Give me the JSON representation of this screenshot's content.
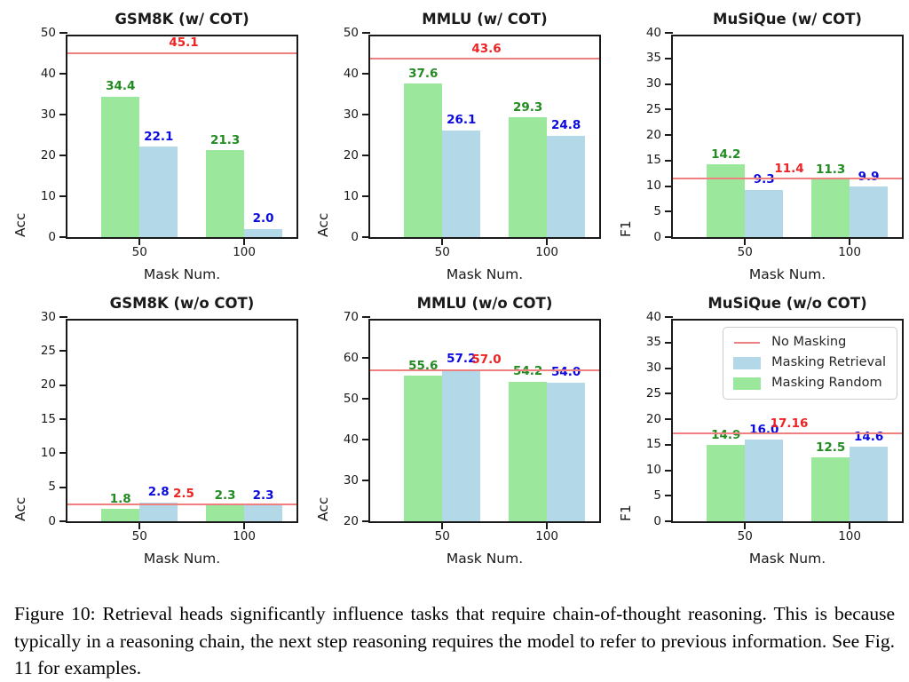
{
  "figure": {
    "caption": "Figure 10: Retrieval heads significantly influence tasks that require chain-of-thought reasoning. This is because typically in a reasoning chain, the next step reasoning requires the model to refer to previous information. See Fig. 11 for examples.",
    "colors": {
      "bar_green": "#9BE79B",
      "bar_blue": "#B3D8E8",
      "baseline_red": "#F08080",
      "label_green": "#228B22",
      "label_blue": "#0B0BE0",
      "label_red": "#EE2222",
      "axis": "#1A1A1A"
    },
    "legend": {
      "entries": [
        {
          "label": "No Masking",
          "swatch": "line",
          "color_key": "baseline_red"
        },
        {
          "label": "Masking Retrieval",
          "swatch": "patch",
          "color_key": "bar_blue"
        },
        {
          "label": "Masking Random",
          "swatch": "patch",
          "color_key": "bar_green"
        }
      ]
    }
  },
  "chart_data": [
    {
      "type": "bar",
      "title": "GSM8K (w/ COT)",
      "ylabel": "Acc",
      "xlabel": "Mask Num.",
      "ylim": [
        0,
        50
      ],
      "yticks": [
        0,
        10,
        20,
        30,
        40,
        50
      ],
      "categories": [
        "50",
        "100"
      ],
      "series": [
        {
          "name": "Masking Random",
          "color_key": "bar_green",
          "label_color_key": "label_green",
          "values": [
            34.4,
            21.3
          ],
          "labels": [
            "34.4",
            "21.3"
          ]
        },
        {
          "name": "Masking Retrieval",
          "color_key": "bar_blue",
          "label_color_key": "label_blue",
          "values": [
            22.1,
            2.0
          ],
          "labels": [
            "22.1",
            "2.0"
          ]
        }
      ],
      "baseline": {
        "name": "No Masking",
        "value": 45.1,
        "label": "45.1"
      },
      "show_legend": false
    },
    {
      "type": "bar",
      "title": "MMLU (w/ COT)",
      "ylabel": "Acc",
      "xlabel": "Mask Num.",
      "ylim": [
        0,
        50
      ],
      "yticks": [
        0,
        10,
        20,
        30,
        40,
        50
      ],
      "categories": [
        "50",
        "100"
      ],
      "series": [
        {
          "name": "Masking Random",
          "color_key": "bar_green",
          "label_color_key": "label_green",
          "values": [
            37.6,
            29.3
          ],
          "labels": [
            "37.6",
            "29.3"
          ]
        },
        {
          "name": "Masking Retrieval",
          "color_key": "bar_blue",
          "label_color_key": "label_blue",
          "values": [
            26.1,
            24.8
          ],
          "labels": [
            "26.1",
            "24.8"
          ]
        }
      ],
      "baseline": {
        "name": "No Masking",
        "value": 43.6,
        "label": "43.6"
      },
      "show_legend": false
    },
    {
      "type": "bar",
      "title": "MuSiQue (w/ COT)",
      "ylabel": "F1",
      "xlabel": "Mask Num.",
      "ylim": [
        0,
        40
      ],
      "yticks": [
        0,
        5,
        10,
        15,
        20,
        25,
        30,
        35,
        40
      ],
      "categories": [
        "50",
        "100"
      ],
      "series": [
        {
          "name": "Masking Random",
          "color_key": "bar_green",
          "label_color_key": "label_green",
          "values": [
            14.2,
            11.3
          ],
          "labels": [
            "14.2",
            "11.3"
          ]
        },
        {
          "name": "Masking Retrieval",
          "color_key": "bar_blue",
          "label_color_key": "label_blue",
          "values": [
            9.3,
            9.9
          ],
          "labels": [
            "9.3",
            "9.9"
          ]
        }
      ],
      "baseline": {
        "name": "No Masking",
        "value": 11.4,
        "label": "11.4"
      },
      "show_legend": false
    },
    {
      "type": "bar",
      "title": "GSM8K (w/o COT)",
      "ylabel": "Acc",
      "xlabel": "Mask Num.",
      "ylim": [
        0,
        30
      ],
      "yticks": [
        0,
        5,
        10,
        15,
        20,
        25,
        30
      ],
      "categories": [
        "50",
        "100"
      ],
      "series": [
        {
          "name": "Masking Random",
          "color_key": "bar_green",
          "label_color_key": "label_green",
          "values": [
            1.8,
            2.3
          ],
          "labels": [
            "1.8",
            "2.3"
          ]
        },
        {
          "name": "Masking Retrieval",
          "color_key": "bar_blue",
          "label_color_key": "label_blue",
          "values": [
            2.8,
            2.3
          ],
          "labels": [
            "2.8",
            "2.3"
          ]
        }
      ],
      "baseline": {
        "name": "No Masking",
        "value": 2.5,
        "label": "2.5"
      },
      "show_legend": false
    },
    {
      "type": "bar",
      "title": "MMLU (w/o COT)",
      "ylabel": "Acc",
      "xlabel": "Mask Num.",
      "ylim": [
        20,
        70
      ],
      "yticks": [
        20,
        30,
        40,
        50,
        60,
        70
      ],
      "categories": [
        "50",
        "100"
      ],
      "series": [
        {
          "name": "Masking Random",
          "color_key": "bar_green",
          "label_color_key": "label_green",
          "values": [
            55.6,
            54.2
          ],
          "labels": [
            "55.6",
            "54.2"
          ]
        },
        {
          "name": "Masking Retrieval",
          "color_key": "bar_blue",
          "label_color_key": "label_blue",
          "values": [
            57.2,
            54.0
          ],
          "labels": [
            "57.2",
            "54.0"
          ]
        }
      ],
      "baseline": {
        "name": "No Masking",
        "value": 57.0,
        "label": "57.0"
      },
      "show_legend": false
    },
    {
      "type": "bar",
      "title": "MuSiQue (w/o COT)",
      "ylabel": "F1",
      "xlabel": "Mask Num.",
      "ylim": [
        0,
        40
      ],
      "yticks": [
        0,
        5,
        10,
        15,
        20,
        25,
        30,
        35,
        40
      ],
      "categories": [
        "50",
        "100"
      ],
      "series": [
        {
          "name": "Masking Random",
          "color_key": "bar_green",
          "label_color_key": "label_green",
          "values": [
            14.9,
            12.5
          ],
          "labels": [
            "14.9",
            "12.5"
          ]
        },
        {
          "name": "Masking Retrieval",
          "color_key": "bar_blue",
          "label_color_key": "label_blue",
          "values": [
            16.0,
            14.6
          ],
          "labels": [
            "16.0",
            "14.6"
          ]
        }
      ],
      "baseline": {
        "name": "No Masking",
        "value": 17.16,
        "label": "17.16"
      },
      "show_legend": true
    }
  ]
}
